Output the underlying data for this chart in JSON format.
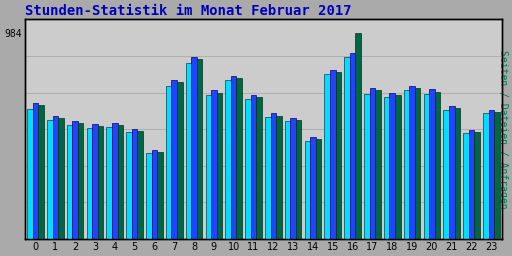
{
  "title": "Stunden-Statistik im Monat Februar 2017",
  "ylabel_right": "Seiten / Dateien / Anfragen",
  "xlabel_labels": [
    "0",
    "1",
    "2",
    "3",
    "4",
    "5",
    "6",
    "7",
    "8",
    "9",
    "10",
    "11",
    "12",
    "13",
    "14",
    "15",
    "16",
    "17",
    "18",
    "19",
    "20",
    "21",
    "22",
    "23"
  ],
  "seiten": [
    620,
    570,
    545,
    530,
    535,
    510,
    410,
    730,
    840,
    690,
    760,
    670,
    585,
    565,
    470,
    790,
    870,
    695,
    680,
    710,
    695,
    615,
    505,
    600
  ],
  "dateien": [
    650,
    590,
    565,
    550,
    555,
    525,
    425,
    760,
    870,
    710,
    780,
    690,
    600,
    580,
    490,
    810,
    890,
    720,
    700,
    730,
    715,
    635,
    520,
    615
  ],
  "anfragen": [
    640,
    580,
    555,
    540,
    545,
    515,
    415,
    750,
    860,
    700,
    770,
    680,
    590,
    570,
    480,
    800,
    984,
    710,
    690,
    720,
    705,
    625,
    510,
    607
  ],
  "color_seiten": "#00DDFF",
  "color_dateien": "#2244FF",
  "color_anfragen": "#006644",
  "background_color": "#AAAAAA",
  "plot_bg_color": "#CCCCCC",
  "border_color": "#000000",
  "title_color": "#0000BB",
  "ylabel_right_color": "#007755",
  "ytick_val": 984,
  "bar_width": 0.28,
  "ylim_max": 1050,
  "title_fontsize": 10,
  "axis_fontsize": 7
}
